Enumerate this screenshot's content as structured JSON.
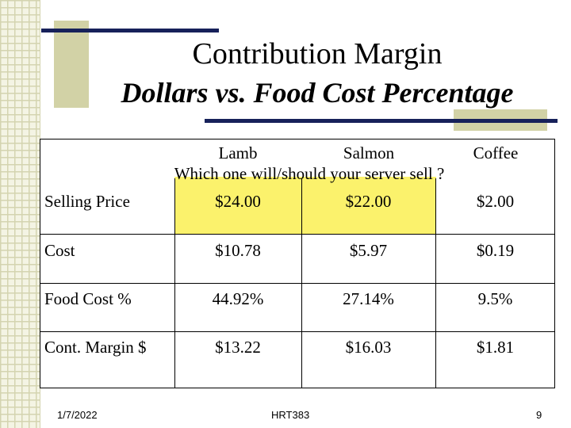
{
  "title": "Contribution Margin",
  "subtitle": "Dollars vs. Food Cost Percentage",
  "question": "Which one will/should your server sell ?",
  "columns": [
    "Lamb",
    "Salmon",
    "Coffee"
  ],
  "rows": [
    {
      "label": "Selling Price",
      "values": [
        "$24.00",
        "$22.00",
        "$2.00"
      ]
    },
    {
      "label": "Cost",
      "values": [
        "$10.78",
        "$5.97",
        "$0.19"
      ]
    },
    {
      "label": "Food Cost %",
      "values": [
        "44.92%",
        "27.14%",
        "9.5%"
      ]
    },
    {
      "label": "Cont. Margin $",
      "values": [
        "$13.22",
        "$16.03",
        "$1.81"
      ]
    }
  ],
  "footer": {
    "date": "1/7/2022",
    "course": "HRT383",
    "page": "9"
  },
  "colors": {
    "navy": "#17215a",
    "olive": "#d2d2a6",
    "highlight": "#fbf26c"
  }
}
